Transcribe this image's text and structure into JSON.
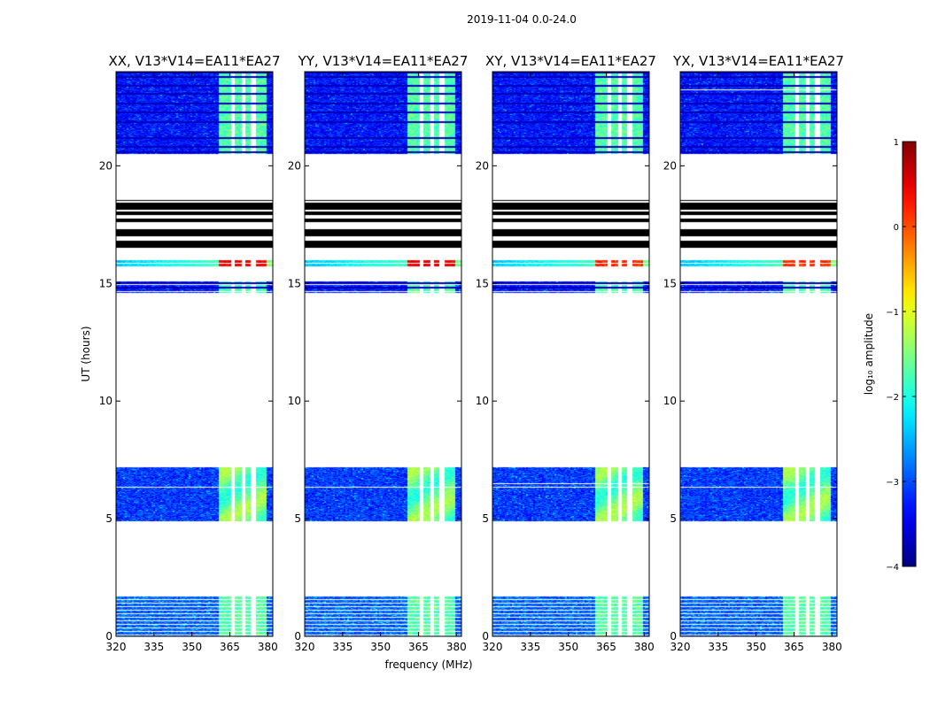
{
  "figure": {
    "title": "2019-11-04 0.0-24.0"
  },
  "chart_data": {
    "type": "heatmap",
    "date_range": "2019-11-04 0.0-24.0",
    "xlabel": "frequency (MHz)",
    "ylabel": "UT (hours)",
    "xlim": [
      320,
      382
    ],
    "ylim": [
      0,
      24
    ],
    "x_ticks": [
      320,
      335,
      350,
      365,
      380
    ],
    "y_ticks": [
      0,
      5,
      10,
      15,
      20
    ],
    "panels": [
      {
        "title": "XX, V13*V14=EA11*EA27",
        "flare_peak_log": 0.6
      },
      {
        "title": "YY, V13*V14=EA11*EA27",
        "flare_peak_log": 0.6
      },
      {
        "title": "XY, V13*V14=EA11*EA27",
        "flare_peak_log": 0.3
      },
      {
        "title": "YX, V13*V14=EA11*EA27",
        "flare_peak_log": 0.3
      }
    ],
    "rfi_band_mhz": [
      360,
      379
    ],
    "band_gaps_mhz": [
      366,
      370,
      374
    ],
    "data_blocks_hours": [
      {
        "t0": 0.0,
        "t1": 1.7,
        "base_log": -2.9
      },
      {
        "t0": 4.9,
        "t1": 7.2,
        "base_log": -3.1
      },
      {
        "t0": 14.6,
        "t1": 15.1,
        "base_log": -3.3
      },
      {
        "t0": 15.7,
        "t1": 16.0,
        "base_log": -2.6
      },
      {
        "t0": 20.5,
        "t1": 24.0,
        "base_log": -3.3
      }
    ],
    "black_bands_hours": [
      [
        16.5,
        16.8
      ],
      [
        17.0,
        17.3
      ],
      [
        17.6,
        17.75
      ],
      [
        17.9,
        18.05
      ],
      [
        18.15,
        18.45
      ],
      [
        18.5,
        18.55
      ]
    ],
    "colorbar": {
      "label": "log₁₀ amplitude",
      "min": -4,
      "max": 1,
      "ticks": [
        -4,
        -3,
        -2,
        -1,
        0,
        1
      ],
      "tick_labels": [
        "−4",
        "−3",
        "−2",
        "−1",
        "0",
        "1"
      ],
      "colormap": "jet"
    }
  }
}
